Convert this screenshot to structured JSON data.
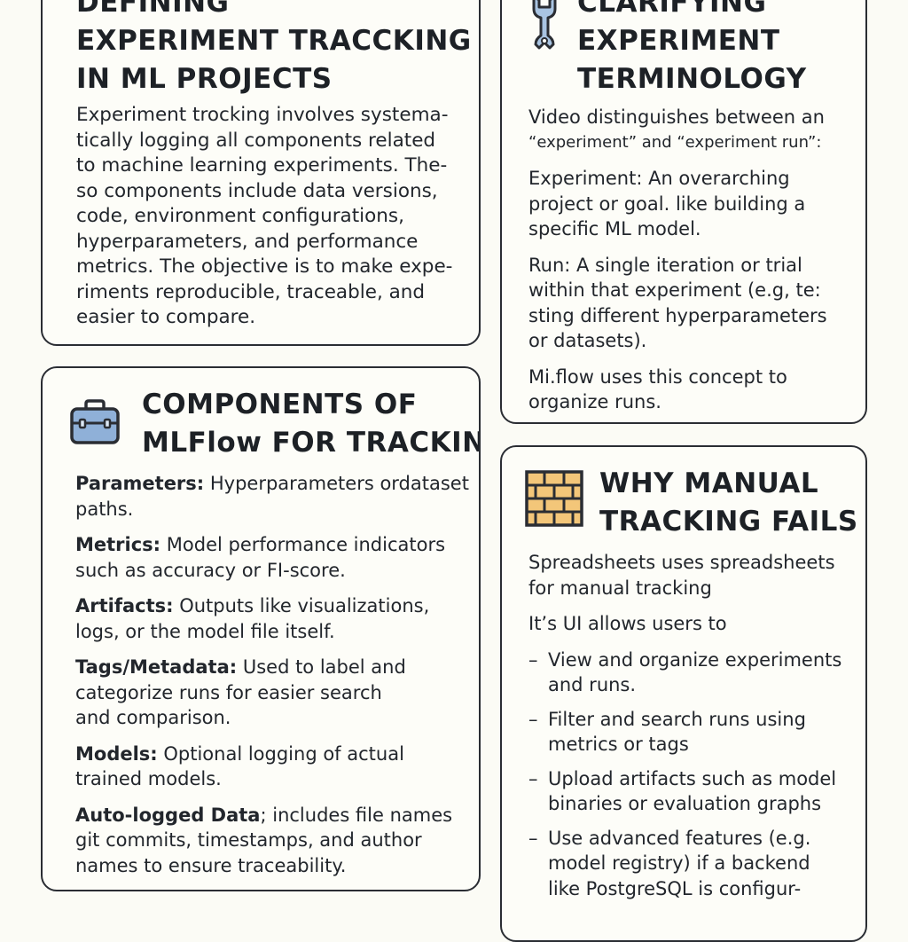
{
  "sections": {
    "defining": {
      "title_lines": [
        "DEFINING",
        "EXPERIMENT TRACCKING",
        "IN ML PROJECTS"
      ],
      "body_lines": [
        "Experiment trocking involves systema-",
        "tically logging all components related",
        "to machine learning experiments. The-",
        "so components include data versions,",
        "code, environment configurations,",
        "hyperparameters, and performance",
        "metrics. The objective is to make expe-",
        "riments reproducible, traceable, and",
        "easier to compare."
      ]
    },
    "terminology": {
      "icon": "wrench-icon",
      "title_lines": [
        "CLARIFYING",
        "EXPERIMENT",
        "TERMINOLOGY"
      ],
      "paragraphs": [
        [
          "Video distinguishes between an",
          "“experiment” and “experiment run”:"
        ],
        [
          "Experiment: An overarching",
          "project or goal. like building a",
          "specific ML model."
        ],
        [
          "Run: A single iteration or trial",
          "within that experiment (e.g, te:",
          "sting different hyperparameters",
          "or datasets)."
        ],
        [
          "Mi.flow uses this concept to",
          "organize runs."
        ]
      ]
    },
    "components": {
      "icon": "toolbox-icon",
      "title_lines": [
        "COMPONENTS OF",
        "MLFlow FOR TRACKING"
      ],
      "items": [
        {
          "label": "Parameters:",
          "lines": [
            " Hyperparameters ordataset",
            "paths."
          ]
        },
        {
          "label": "Metrics:",
          "lines": [
            " Model performance indicators",
            "such as accuracy or FI-score."
          ]
        },
        {
          "label": "Artifacts:",
          "lines": [
            " Outputs like visualizations,",
            "logs, or the model file itself."
          ]
        },
        {
          "label": "Tags/Metadata:",
          "lines": [
            " Used to label and",
            "categorize runs for easier search",
            "and comparison."
          ]
        },
        {
          "label": "Models:",
          "lines": [
            " Optional logging of actual",
            "trained models."
          ]
        },
        {
          "label": "Auto-logged Data",
          "lines": [
            "; includes file names",
            "git commits, timestamps, and author",
            "names to ensure traceability."
          ]
        }
      ]
    },
    "manual": {
      "icon": "brick-wall-icon",
      "title_lines": [
        "WHY MANUAL",
        "TRACKING FAILS"
      ],
      "intro": [
        [
          "Spreadsheets uses spreadsheets",
          "for manual tracking"
        ],
        [
          "It’s UI allows users to"
        ]
      ],
      "bullets": [
        [
          "View and organize experiments",
          "and runs."
        ],
        [
          "Filter and search runs using",
          "metrics or tags"
        ],
        [
          "Upload artifacts such as model",
          "binaries or evaluation graphs"
        ],
        [
          "Use advanced features (e.g.",
          "model registry) if a backend",
          "like PostgreSQL is configur-"
        ]
      ]
    }
  },
  "colors": {
    "border": "#2a2d33",
    "text": "#1f2329",
    "wrench_fill": "#a9c4e2",
    "toolbox_fill": "#8fb0d8",
    "brick_fill": "#f3c679"
  }
}
